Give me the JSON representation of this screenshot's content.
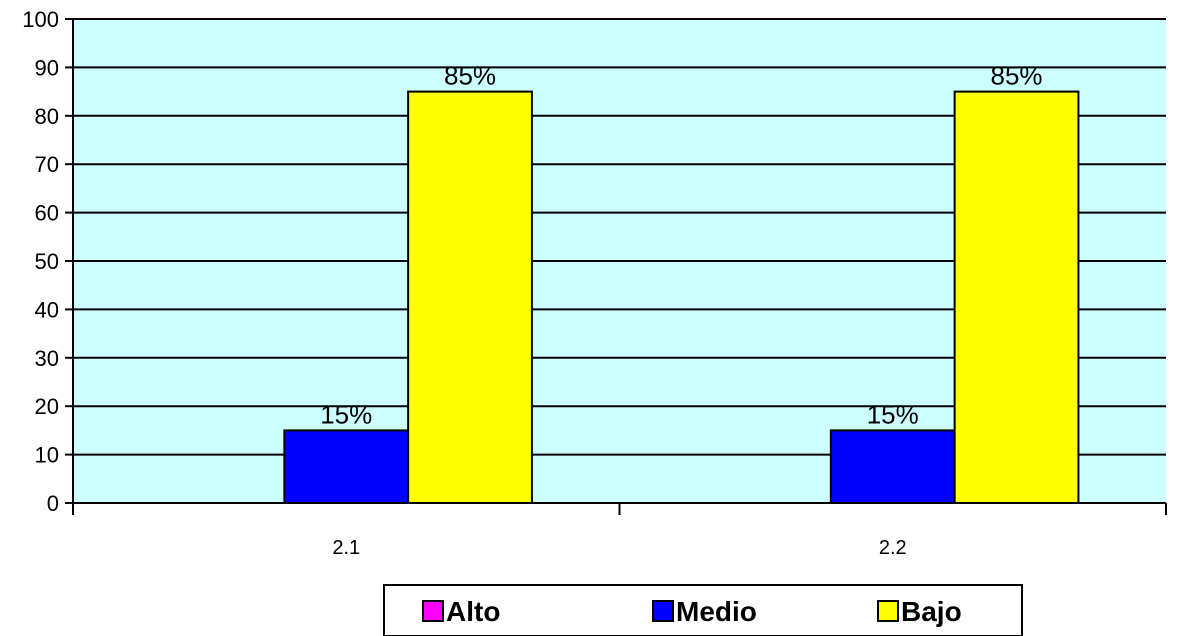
{
  "chart_data": {
    "type": "bar",
    "categories": [
      "2.1",
      "2.2"
    ],
    "series": [
      {
        "name": "Alto",
        "values": [
          0,
          0
        ],
        "color": "#ff00ff",
        "labels": [
          "",
          ""
        ]
      },
      {
        "name": "Medio",
        "values": [
          15,
          15
        ],
        "color": "#0000ff",
        "labels": [
          "15%",
          "15%"
        ]
      },
      {
        "name": "Bajo",
        "values": [
          85,
          85
        ],
        "color": "#ffff00",
        "labels": [
          "85%",
          "85%"
        ]
      }
    ],
    "ylim": [
      0,
      100
    ],
    "yticks": [
      "0",
      "10",
      "20",
      "30",
      "40",
      "50",
      "60",
      "70",
      "80",
      "90",
      "100"
    ],
    "title": "",
    "xlabel": "",
    "ylabel": "",
    "grid": true,
    "legend": "bottom",
    "plot_background": "#ccffff"
  }
}
